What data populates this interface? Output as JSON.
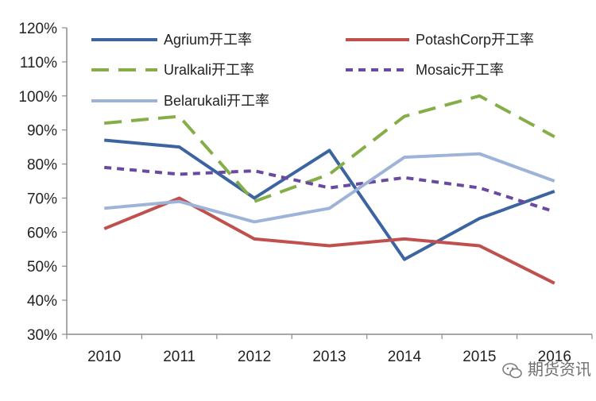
{
  "chart_data": {
    "type": "line",
    "title": "",
    "xlabel": "",
    "ylabel": "",
    "x": [
      "2010",
      "2011",
      "2012",
      "2013",
      "2014",
      "2015",
      "2016"
    ],
    "y_ticks": [
      "30%",
      "40%",
      "50%",
      "60%",
      "70%",
      "80%",
      "90%",
      "100%",
      "110%",
      "120%"
    ],
    "ylim": [
      30,
      120
    ],
    "y_unit": "%",
    "grid": false,
    "legend_position": "top (inside plot, two columns)",
    "series": [
      {
        "name": "Agrium开工率",
        "color": "#3b64a0",
        "dash": "solid",
        "values": [
          87,
          85,
          70,
          84,
          52,
          64,
          72
        ]
      },
      {
        "name": "PotashCorp开工率",
        "color": "#c0504d",
        "dash": "solid",
        "values": [
          61,
          70,
          58,
          56,
          58,
          56,
          45
        ]
      },
      {
        "name": "Uralkali开工率",
        "color": "#86ae48",
        "dash": "long-dash",
        "values": [
          92,
          94,
          69,
          77,
          94,
          100,
          88
        ]
      },
      {
        "name": "Mosaic开工率",
        "color": "#6a4aa0",
        "dash": "short-dash",
        "values": [
          79,
          77,
          78,
          73,
          76,
          73,
          66
        ]
      },
      {
        "name": "Belarukali开工率",
        "color": "#9eb3d8",
        "dash": "solid",
        "values": [
          67,
          69,
          63,
          67,
          82,
          83,
          75
        ]
      }
    ]
  },
  "watermark": {
    "text": "期货资讯",
    "icon": "wechat-icon"
  }
}
